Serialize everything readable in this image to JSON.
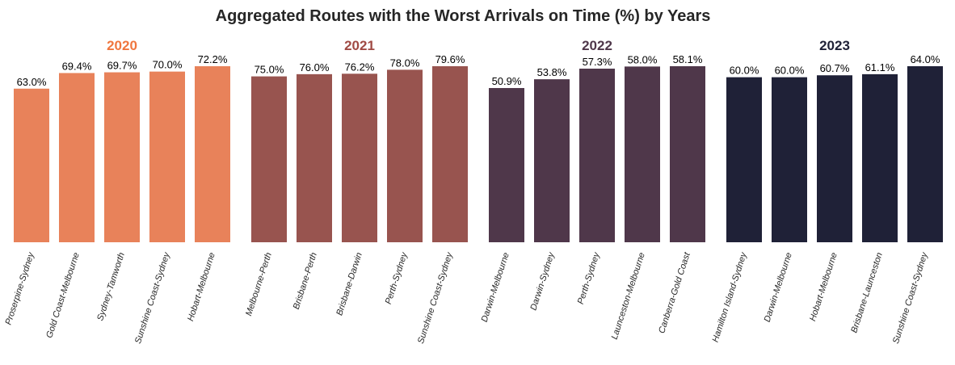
{
  "chart_data": {
    "type": "bar",
    "title": "Aggregated Routes with the Worst Arrivals on Time (%) by Years",
    "xlabel": "",
    "ylabel": "",
    "grid": false,
    "value_suffix": "%",
    "groups": [
      {
        "name": "2020",
        "color": "#E8825A",
        "title_color": "#F0763E",
        "categories": [
          "Proserpine-Sydney",
          "Gold Coast-Melbourne",
          "Sydney-Tamworth",
          "Sunshine Coast-Sydney",
          "Hobart-Melbourne"
        ],
        "values": [
          63.0,
          69.4,
          69.7,
          70.0,
          72.2
        ]
      },
      {
        "name": "2021",
        "color": "#98544F",
        "title_color": "#A04A44",
        "categories": [
          "Melbourne-Perth",
          "Brisbane-Perth",
          "Brisbane-Darwin",
          "Perth-Sydney",
          "Sunshine Coast-Sydney"
        ],
        "values": [
          75.0,
          76.0,
          76.2,
          78.0,
          79.6
        ]
      },
      {
        "name": "2022",
        "color": "#4F374A",
        "title_color": "#4F374A",
        "categories": [
          "Darwin-Melbourne",
          "Darwin-Sydney",
          "Perth-Sydney",
          "Launceston-Melbourne",
          "Canberra-Gold Coast"
        ],
        "values": [
          50.9,
          53.8,
          57.3,
          58.0,
          58.1
        ]
      },
      {
        "name": "2023",
        "color": "#1F2137",
        "title_color": "#1F2137",
        "categories": [
          "Hamilton Island-Sydney",
          "Darwin-Melbourne",
          "Hobart-Melbourne",
          "Brisbane-Launceston",
          "Sunshine Coast-Sydney"
        ],
        "values": [
          60.0,
          60.0,
          60.7,
          61.1,
          64.0
        ]
      }
    ]
  }
}
